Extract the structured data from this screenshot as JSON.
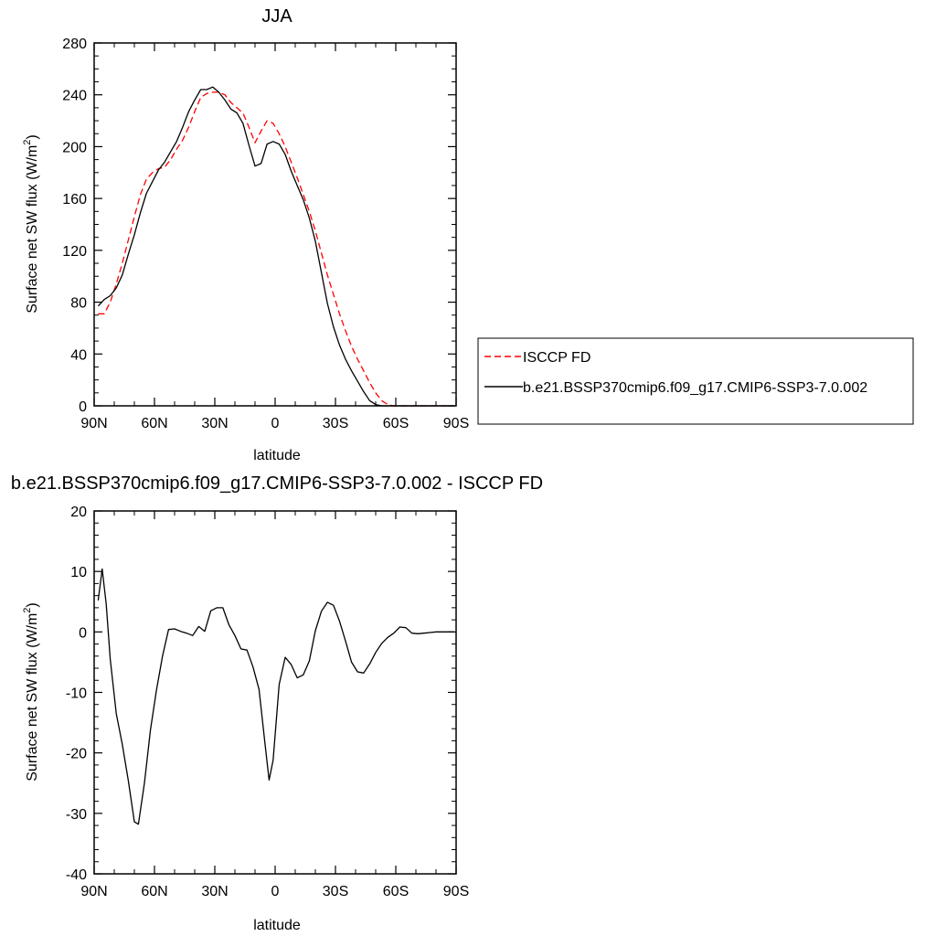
{
  "chart_data": [
    {
      "type": "line",
      "title": "JJA",
      "xlabel": "latitude",
      "ylabel": "Surface net SW flux (W/m",
      "ylabel_sup": "2",
      "ylabel_end": ")",
      "xlim": [
        90,
        -90
      ],
      "ylim": [
        0,
        280
      ],
      "xticks": [
        90,
        60,
        30,
        0,
        -30,
        -60,
        -90
      ],
      "xtick_labels": [
        "90N",
        "60N",
        "30N",
        "0",
        "30S",
        "60S",
        "90S"
      ],
      "yticks": [
        0,
        40,
        80,
        120,
        160,
        200,
        240,
        280
      ],
      "ytick_labels": [
        "0",
        "40",
        "80",
        "120",
        "160",
        "200",
        "240",
        "280"
      ],
      "grid": false,
      "legend_position": "right, outside plot",
      "series": [
        {
          "name": "ISCCP FD",
          "color": "#ff0000",
          "style": "dashed",
          "x": [
            88,
            85,
            82,
            79,
            76,
            73,
            70,
            67,
            64,
            61,
            58,
            55,
            52,
            49,
            46,
            43,
            40,
            37,
            34,
            31,
            28,
            25,
            22,
            19,
            16,
            13,
            10,
            7,
            4,
            1,
            -2,
            -5,
            -8,
            -11,
            -14,
            -17,
            -20,
            -23,
            -26,
            -29,
            -32,
            -35,
            -38,
            -41,
            -44,
            -47,
            -50,
            -53,
            -56,
            -59,
            -62,
            -65,
            -68,
            -71,
            -74,
            -77,
            -80,
            -83,
            -86,
            -89
          ],
          "y": [
            71,
            71,
            80,
            94,
            110,
            128,
            146,
            163,
            175,
            180,
            183,
            184,
            190,
            198,
            205,
            215,
            227,
            238,
            241,
            242,
            242,
            240,
            234,
            230,
            226,
            215,
            203,
            212,
            220,
            218,
            210,
            200,
            188,
            176,
            163,
            150,
            135,
            118,
            101,
            86,
            71,
            58,
            46,
            36,
            27,
            18,
            10,
            4,
            1,
            0,
            0,
            0,
            0,
            0,
            0,
            0,
            0,
            0,
            0,
            0
          ]
        },
        {
          "name": "b.e21.BSSP370cmip6.f09_g17.CMIP6-SSP3-7.0.002",
          "color": "#000000",
          "style": "solid",
          "x": [
            88,
            85,
            82,
            79,
            76,
            73,
            70,
            67,
            64,
            61,
            58,
            55,
            52,
            49,
            46,
            43,
            40,
            37,
            34,
            31,
            28,
            25,
            22,
            19,
            16,
            13,
            10,
            7,
            4,
            1,
            -2,
            -5,
            -8,
            -11,
            -14,
            -17,
            -20,
            -23,
            -26,
            -29,
            -32,
            -35,
            -38,
            -41,
            -44,
            -47,
            -50,
            -53,
            -56,
            -59,
            -62,
            -65,
            -68,
            -71,
            -74,
            -77,
            -80,
            -83,
            -86,
            -89
          ],
          "y": [
            77,
            82,
            85,
            91,
            101,
            117,
            132,
            149,
            164,
            173,
            182,
            188,
            196,
            204,
            215,
            227,
            236,
            244,
            244,
            246,
            242,
            236,
            229,
            226,
            218,
            201,
            185,
            187,
            202,
            204,
            202,
            194,
            181,
            170,
            159,
            145,
            127,
            103,
            79,
            61,
            47,
            36,
            27,
            19,
            11,
            4,
            1,
            0,
            0,
            0,
            0,
            0,
            0,
            0,
            0,
            0,
            0,
            0,
            0,
            0
          ]
        }
      ]
    },
    {
      "type": "line",
      "title": "b.e21.BSSP370cmip6.f09_g17.CMIP6-SSP3-7.0.002 - ISCCP FD",
      "xlabel": "latitude",
      "ylabel": "Surface net SW flux (W/m",
      "ylabel_sup": "2",
      "ylabel_end": ")",
      "xlim": [
        90,
        -90
      ],
      "ylim": [
        -40,
        20
      ],
      "xticks": [
        90,
        60,
        30,
        0,
        -30,
        -60,
        -90
      ],
      "xtick_labels": [
        "90N",
        "60N",
        "30N",
        "0",
        "30S",
        "60S",
        "90S"
      ],
      "yticks": [
        -40,
        -30,
        -20,
        -10,
        0,
        10,
        20
      ],
      "ytick_labels": [
        "-40",
        "-30",
        "-20",
        "-10",
        "0",
        "10",
        "20"
      ],
      "grid": false,
      "series": [
        {
          "color": "#000000",
          "style": "solid",
          "x": [
            88,
            86,
            84,
            82,
            79,
            76,
            73,
            70,
            68,
            65,
            62,
            59,
            56,
            53,
            50,
            47,
            44,
            41,
            38,
            35,
            32,
            29,
            26,
            23,
            20,
            17,
            14,
            11,
            8,
            5,
            3,
            1,
            -2,
            -5,
            -8,
            -11,
            -14,
            -17,
            -20,
            -23,
            -26,
            -29,
            -32,
            -35,
            -38,
            -41,
            -44,
            -47,
            -50,
            -53,
            -56,
            -59,
            -62,
            -65,
            -68,
            -71,
            -74,
            -77,
            -80,
            -83,
            -86,
            -89
          ],
          "y": [
            5.2,
            10.4,
            4.6,
            -4.5,
            -13.5,
            -18.6,
            -24.6,
            -31.4,
            -31.8,
            -25.0,
            -16.2,
            -9.6,
            -4.0,
            0.4,
            0.5,
            0.1,
            -0.2,
            -0.6,
            0.9,
            0.1,
            3.5,
            4.0,
            4.0,
            1.2,
            -0.6,
            -2.8,
            -3.0,
            -5.8,
            -9.5,
            -18.6,
            -24.5,
            -21.2,
            -8.7,
            -4.2,
            -5.4,
            -7.6,
            -7.1,
            -4.8,
            0.2,
            3.4,
            4.9,
            4.4,
            1.8,
            -1.5,
            -5.0,
            -6.6,
            -6.8,
            -5.3,
            -3.4,
            -1.9,
            -0.9,
            -0.2,
            0.8,
            0.7,
            -0.2,
            -0.3,
            -0.2,
            -0.1,
            0.0,
            0.0,
            0.0,
            0.0
          ]
        }
      ]
    }
  ],
  "legend": {
    "entries": [
      {
        "label": "ISCCP FD",
        "color": "#ff0000",
        "style": "dashed"
      },
      {
        "label": "b.e21.BSSP370cmip6.f09_g17.CMIP6-SSP3-7.0.002",
        "color": "#000000",
        "style": "solid"
      }
    ]
  }
}
